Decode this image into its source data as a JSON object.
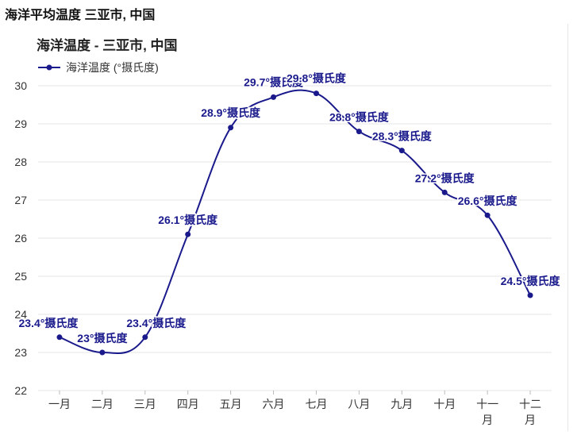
{
  "header": {
    "title": "海洋平均温度 三亚市, 中国"
  },
  "colors": {
    "series": "#1a1a8c",
    "grid": "#e6e6e6",
    "text": "#333333"
  },
  "chart_data": {
    "type": "line",
    "title": "海洋温度 - 三亚市, 中国",
    "categories": [
      "一月",
      "二月",
      "三月",
      "四月",
      "五月",
      "六月",
      "七月",
      "八月",
      "九月",
      "十月",
      "十一\n月",
      "十二\n月"
    ],
    "series": [
      {
        "name": "海洋温度 (°摄氏度)",
        "values": [
          23.4,
          23,
          23.4,
          26.1,
          28.9,
          29.7,
          29.8,
          28.8,
          28.3,
          27.2,
          26.6,
          24.5
        ],
        "data_labels": [
          "23.4°摄氏度",
          "23°摄氏度",
          "23.4°摄氏度",
          "26.1°摄氏度",
          "28.9°摄氏度",
          "29.7°摄氏度",
          "29.8°摄氏度",
          "28.8°摄氏度",
          "28.3°摄氏度",
          "27.2°摄氏度",
          "26.6°摄氏度",
          "24.5°摄氏度"
        ]
      }
    ],
    "ylim": [
      22,
      30
    ],
    "yticks": [
      22,
      23,
      24,
      25,
      26,
      27,
      28,
      29,
      30
    ],
    "grid": true,
    "legend": "top-left",
    "xlabel": "",
    "ylabel": ""
  }
}
